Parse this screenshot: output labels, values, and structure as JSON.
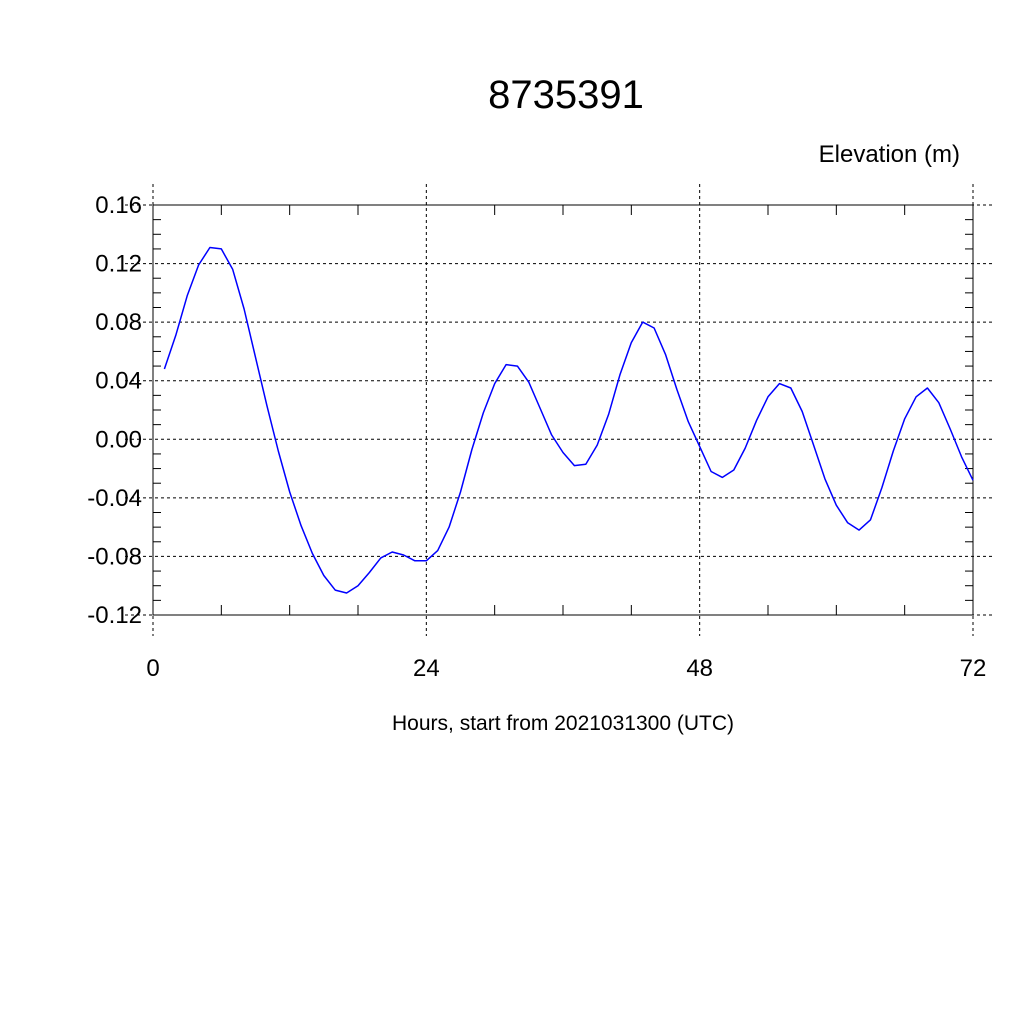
{
  "chart_data": {
    "type": "line",
    "title": "8735391",
    "units_label": "Elevation (m)",
    "xlabel": "Hours, start from 2021031300 (UTC)",
    "ylabel": "",
    "xlim": [
      0,
      72
    ],
    "ylim": [
      -0.12,
      0.16
    ],
    "x_ticks": [
      0,
      24,
      48,
      72
    ],
    "x_tick_labels": [
      "0",
      "24",
      "48",
      "72"
    ],
    "y_ticks": [
      -0.12,
      -0.08,
      -0.04,
      0.0,
      0.04,
      0.08,
      0.12,
      0.16
    ],
    "y_tick_labels": [
      "-0.12",
      "-0.08",
      "-0.04",
      "0.00",
      "0.04",
      "0.08",
      "0.12",
      "0.16"
    ],
    "grid": true,
    "series": [
      {
        "color": "#0000ff",
        "x": [
          1,
          2,
          3,
          4,
          5,
          6,
          7,
          8,
          9,
          10,
          11,
          12,
          13,
          14,
          15,
          16,
          17,
          18,
          19,
          20,
          21,
          22,
          23,
          24,
          25,
          26,
          27,
          28,
          29,
          30,
          31,
          32,
          33,
          34,
          35,
          36,
          37,
          38,
          39,
          40,
          41,
          42,
          43,
          44,
          45,
          46,
          47,
          48,
          49,
          50,
          51,
          52,
          53,
          54,
          55,
          56,
          57,
          58,
          59,
          60,
          61,
          62,
          63,
          64,
          65,
          66,
          67,
          68,
          69,
          70,
          71,
          72
        ],
        "values": [
          0.048,
          0.071,
          0.098,
          0.119,
          0.131,
          0.13,
          0.116,
          0.089,
          0.056,
          0.023,
          -0.008,
          -0.036,
          -0.059,
          -0.078,
          -0.093,
          -0.103,
          -0.105,
          -0.1,
          -0.091,
          -0.081,
          -0.077,
          -0.079,
          -0.083,
          -0.083,
          -0.076,
          -0.06,
          -0.036,
          -0.007,
          0.018,
          0.038,
          0.051,
          0.05,
          0.039,
          0.021,
          0.003,
          -0.009,
          -0.018,
          -0.017,
          -0.004,
          0.017,
          0.044,
          0.066,
          0.08,
          0.076,
          0.058,
          0.034,
          0.012,
          -0.005,
          -0.022,
          -0.026,
          -0.021,
          -0.006,
          0.013,
          0.029,
          0.038,
          0.035,
          0.019,
          -0.004,
          -0.027,
          -0.045,
          -0.057,
          -0.062,
          -0.055,
          -0.033,
          -0.008,
          0.014,
          0.029,
          0.035,
          0.025,
          0.007,
          -0.012,
          -0.028
        ]
      }
    ]
  }
}
